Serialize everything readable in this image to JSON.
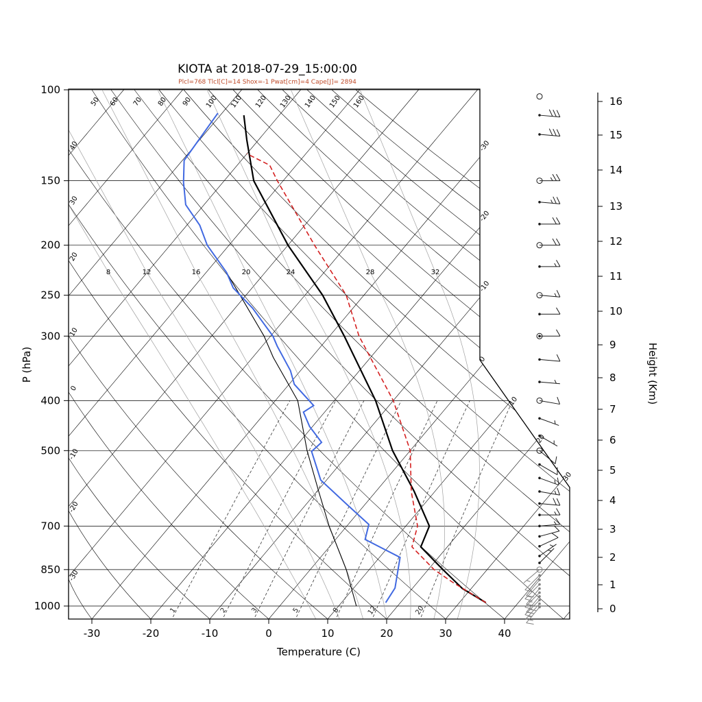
{
  "figure": {
    "title": "KIOTA at 2018-07-29_15:00:00",
    "subtitle": "Plcl=768 Tlcl[C]=14 Shox=-1 Pwat[cm]=4 Cape[J]= 2894"
  },
  "axes": {
    "left": {
      "label": "P (hPa)",
      "ticks": [
        100,
        150,
        200,
        250,
        300,
        400,
        500,
        700,
        850,
        1000
      ]
    },
    "bottom": {
      "label": "Temperature (C)",
      "ticks": [
        -30,
        -20,
        -10,
        0,
        10,
        20,
        30,
        40
      ]
    },
    "right": {
      "label": "Height (Km)",
      "ticks": [
        0,
        1,
        2,
        3,
        4,
        5,
        6,
        7,
        8,
        9,
        10,
        11,
        12,
        13,
        14,
        15,
        16
      ]
    }
  },
  "reference_lines": {
    "dry_adiabat_labels_top": [
      50,
      60,
      70,
      80,
      90,
      100,
      110,
      120,
      130,
      140,
      150,
      160
    ],
    "dry_adiabat_labels_left": [
      40,
      30,
      20,
      10,
      0,
      -10,
      -20,
      -30
    ],
    "isotherm_labels_right": [
      -30,
      -20,
      -10,
      0,
      10,
      20,
      30
    ],
    "moist_adiabat_labels": [
      8,
      12,
      16,
      20,
      24,
      28,
      32
    ],
    "mixing_ratio_labels": [
      1,
      2,
      3,
      5,
      8,
      12,
      20
    ]
  },
  "colors": {
    "temperature_line": "#000000",
    "dewpoint_line": "#4169e1",
    "parcel_line": "#d42020",
    "wet_bulb_line": "#000000",
    "subtitle": "#bf4b2a",
    "moist_adiabat": "#a0a0a0",
    "mixing_ratio": "#333333",
    "background_line": "#000000",
    "barb": "#1a1a1a",
    "barb_cluster": "#808080"
  },
  "chart_data": {
    "type": "line",
    "title": "KIOTA at 2018-07-29_15:00:00",
    "xlabel": "Temperature (C)",
    "ylabel": "P (hPa)",
    "ylabel_right": "Height (Km)",
    "x_range_C": [
      -30,
      40
    ],
    "pressure_range_hPa": [
      100,
      1050
    ],
    "series": [
      {
        "name": "temperature",
        "units": [
          "hPa",
          "C"
        ],
        "style": "solid",
        "width": 2.2,
        "points": [
          [
            985,
            34.5
          ],
          [
            925,
            28.5
          ],
          [
            850,
            22.5
          ],
          [
            768,
            15.5
          ],
          [
            700,
            14
          ],
          [
            600,
            6.5
          ],
          [
            500,
            -3
          ],
          [
            400,
            -13
          ],
          [
            300,
            -27.5
          ],
          [
            250,
            -37
          ],
          [
            200,
            -50
          ],
          [
            150,
            -65
          ],
          [
            125,
            -72
          ],
          [
            112,
            -76
          ]
        ]
      },
      {
        "name": "dewpoint",
        "units": [
          "hPa",
          "C"
        ],
        "style": "solid",
        "width": 2,
        "points": [
          [
            985,
            17.5
          ],
          [
            923,
            17
          ],
          [
            805,
            13.5
          ],
          [
            743,
            5
          ],
          [
            695,
            3.5
          ],
          [
            638,
            -2.8
          ],
          [
            570,
            -11
          ],
          [
            536,
            -13.7
          ],
          [
            502,
            -16.6
          ],
          [
            482,
            -16.2
          ],
          [
            449,
            -20.5
          ],
          [
            421,
            -23.6
          ],
          [
            409,
            -22.8
          ],
          [
            372,
            -29.1
          ],
          [
            350,
            -31.7
          ],
          [
            314,
            -37.4
          ],
          [
            300,
            -39.6
          ],
          [
            265,
            -47
          ],
          [
            242,
            -53.2
          ],
          [
            226,
            -56.5
          ],
          [
            200,
            -63.7
          ],
          [
            183,
            -67.8
          ],
          [
            167,
            -73.1
          ],
          [
            151,
            -76.7
          ],
          [
            137,
            -79.7
          ],
          [
            111,
            -80.7
          ]
        ]
      },
      {
        "name": "parcel",
        "units": [
          "hPa",
          "C"
        ],
        "style": "dashed",
        "width": 1.6,
        "points": [
          [
            985,
            34.5
          ],
          [
            900,
            26
          ],
          [
            850,
            21
          ],
          [
            768,
            14
          ],
          [
            700,
            12
          ],
          [
            600,
            6
          ],
          [
            500,
            0
          ],
          [
            400,
            -10
          ],
          [
            300,
            -25
          ],
          [
            250,
            -33
          ],
          [
            200,
            -45.5
          ],
          [
            150,
            -61
          ],
          [
            140,
            -64.5
          ],
          [
            133,
            -70
          ]
        ]
      },
      {
        "name": "wet_bulb",
        "units": [
          "hPa",
          "C"
        ],
        "style": "solid",
        "width": 1.1,
        "points": [
          [
            1000,
            13
          ],
          [
            850,
            6.1
          ],
          [
            700,
            -3
          ],
          [
            600,
            -9.7
          ],
          [
            500,
            -17.5
          ],
          [
            400,
            -26.2
          ],
          [
            330,
            -36.5
          ],
          [
            300,
            -41.1
          ],
          [
            257,
            -49.5
          ],
          [
            226,
            -56.5
          ]
        ]
      }
    ],
    "wind_barbs": [
      {
        "p": 103,
        "speed_kt": 0,
        "dir_deg": 0,
        "marker": "circle"
      },
      {
        "p": 112,
        "speed_kt": 30,
        "dir_deg": 95,
        "marker": "dot"
      },
      {
        "p": 122,
        "speed_kt": 30,
        "dir_deg": 95,
        "marker": "dot"
      },
      {
        "p": 150,
        "speed_kt": 25,
        "dir_deg": 90,
        "marker": "circle"
      },
      {
        "p": 165,
        "speed_kt": 25,
        "dir_deg": 95,
        "marker": "dot"
      },
      {
        "p": 182,
        "speed_kt": 20,
        "dir_deg": 90,
        "marker": "dot"
      },
      {
        "p": 200,
        "speed_kt": 20,
        "dir_deg": 90,
        "marker": "circle"
      },
      {
        "p": 220,
        "speed_kt": 15,
        "dir_deg": 90,
        "marker": "dot"
      },
      {
        "p": 250,
        "speed_kt": 15,
        "dir_deg": 95,
        "marker": "circle"
      },
      {
        "p": 272,
        "speed_kt": 10,
        "dir_deg": 90,
        "marker": "dot"
      },
      {
        "p": 300,
        "speed_kt": 10,
        "dir_deg": 90,
        "marker": "dotcircle"
      },
      {
        "p": 333,
        "speed_kt": 10,
        "dir_deg": 95,
        "marker": "dot"
      },
      {
        "p": 368,
        "speed_kt": 5,
        "dir_deg": 95,
        "marker": "dot"
      },
      {
        "p": 400,
        "speed_kt": 10,
        "dir_deg": 100,
        "marker": "circle"
      },
      {
        "p": 433,
        "speed_kt": 5,
        "dir_deg": 110,
        "marker": "dot"
      },
      {
        "p": 468,
        "speed_kt": 5,
        "dir_deg": 120,
        "marker": "dot"
      },
      {
        "p": 500,
        "speed_kt": 10,
        "dir_deg": 130,
        "marker": "circle"
      },
      {
        "p": 532,
        "speed_kt": 10,
        "dir_deg": 120,
        "marker": "dot"
      },
      {
        "p": 565,
        "speed_kt": 15,
        "dir_deg": 110,
        "marker": "dot"
      },
      {
        "p": 600,
        "speed_kt": 15,
        "dir_deg": 100,
        "marker": "dot"
      },
      {
        "p": 633,
        "speed_kt": 20,
        "dir_deg": 95,
        "marker": "dot"
      },
      {
        "p": 666,
        "speed_kt": 15,
        "dir_deg": 90,
        "marker": "dot"
      },
      {
        "p": 700,
        "speed_kt": 15,
        "dir_deg": 85,
        "marker": "dot"
      },
      {
        "p": 733,
        "speed_kt": 10,
        "dir_deg": 75,
        "marker": "dot"
      },
      {
        "p": 766,
        "speed_kt": 10,
        "dir_deg": 65,
        "marker": "dot"
      },
      {
        "p": 800,
        "speed_kt": 5,
        "dir_deg": 55,
        "marker": "dot"
      },
      {
        "p": 825,
        "speed_kt": 5,
        "dir_deg": 45,
        "marker": "dot"
      },
      {
        "p": 850,
        "speed_kt": 5,
        "dir_deg": 230,
        "marker": "circle"
      },
      {
        "p": 872,
        "speed_kt": 10,
        "dir_deg": 225,
        "marker": "dot"
      },
      {
        "p": 890,
        "speed_kt": 10,
        "dir_deg": 220,
        "marker": "dot"
      },
      {
        "p": 908,
        "speed_kt": 15,
        "dir_deg": 225,
        "marker": "dot"
      },
      {
        "p": 925,
        "speed_kt": 15,
        "dir_deg": 220,
        "marker": "dot"
      },
      {
        "p": 942,
        "speed_kt": 20,
        "dir_deg": 225,
        "marker": "dot"
      },
      {
        "p": 958,
        "speed_kt": 20,
        "dir_deg": 220,
        "marker": "dot"
      },
      {
        "p": 974,
        "speed_kt": 15,
        "dir_deg": 225,
        "marker": "dot"
      },
      {
        "p": 990,
        "speed_kt": 15,
        "dir_deg": 222,
        "marker": "dot"
      },
      {
        "p": 1005,
        "speed_kt": 10,
        "dir_deg": 220,
        "marker": "dot"
      }
    ]
  }
}
